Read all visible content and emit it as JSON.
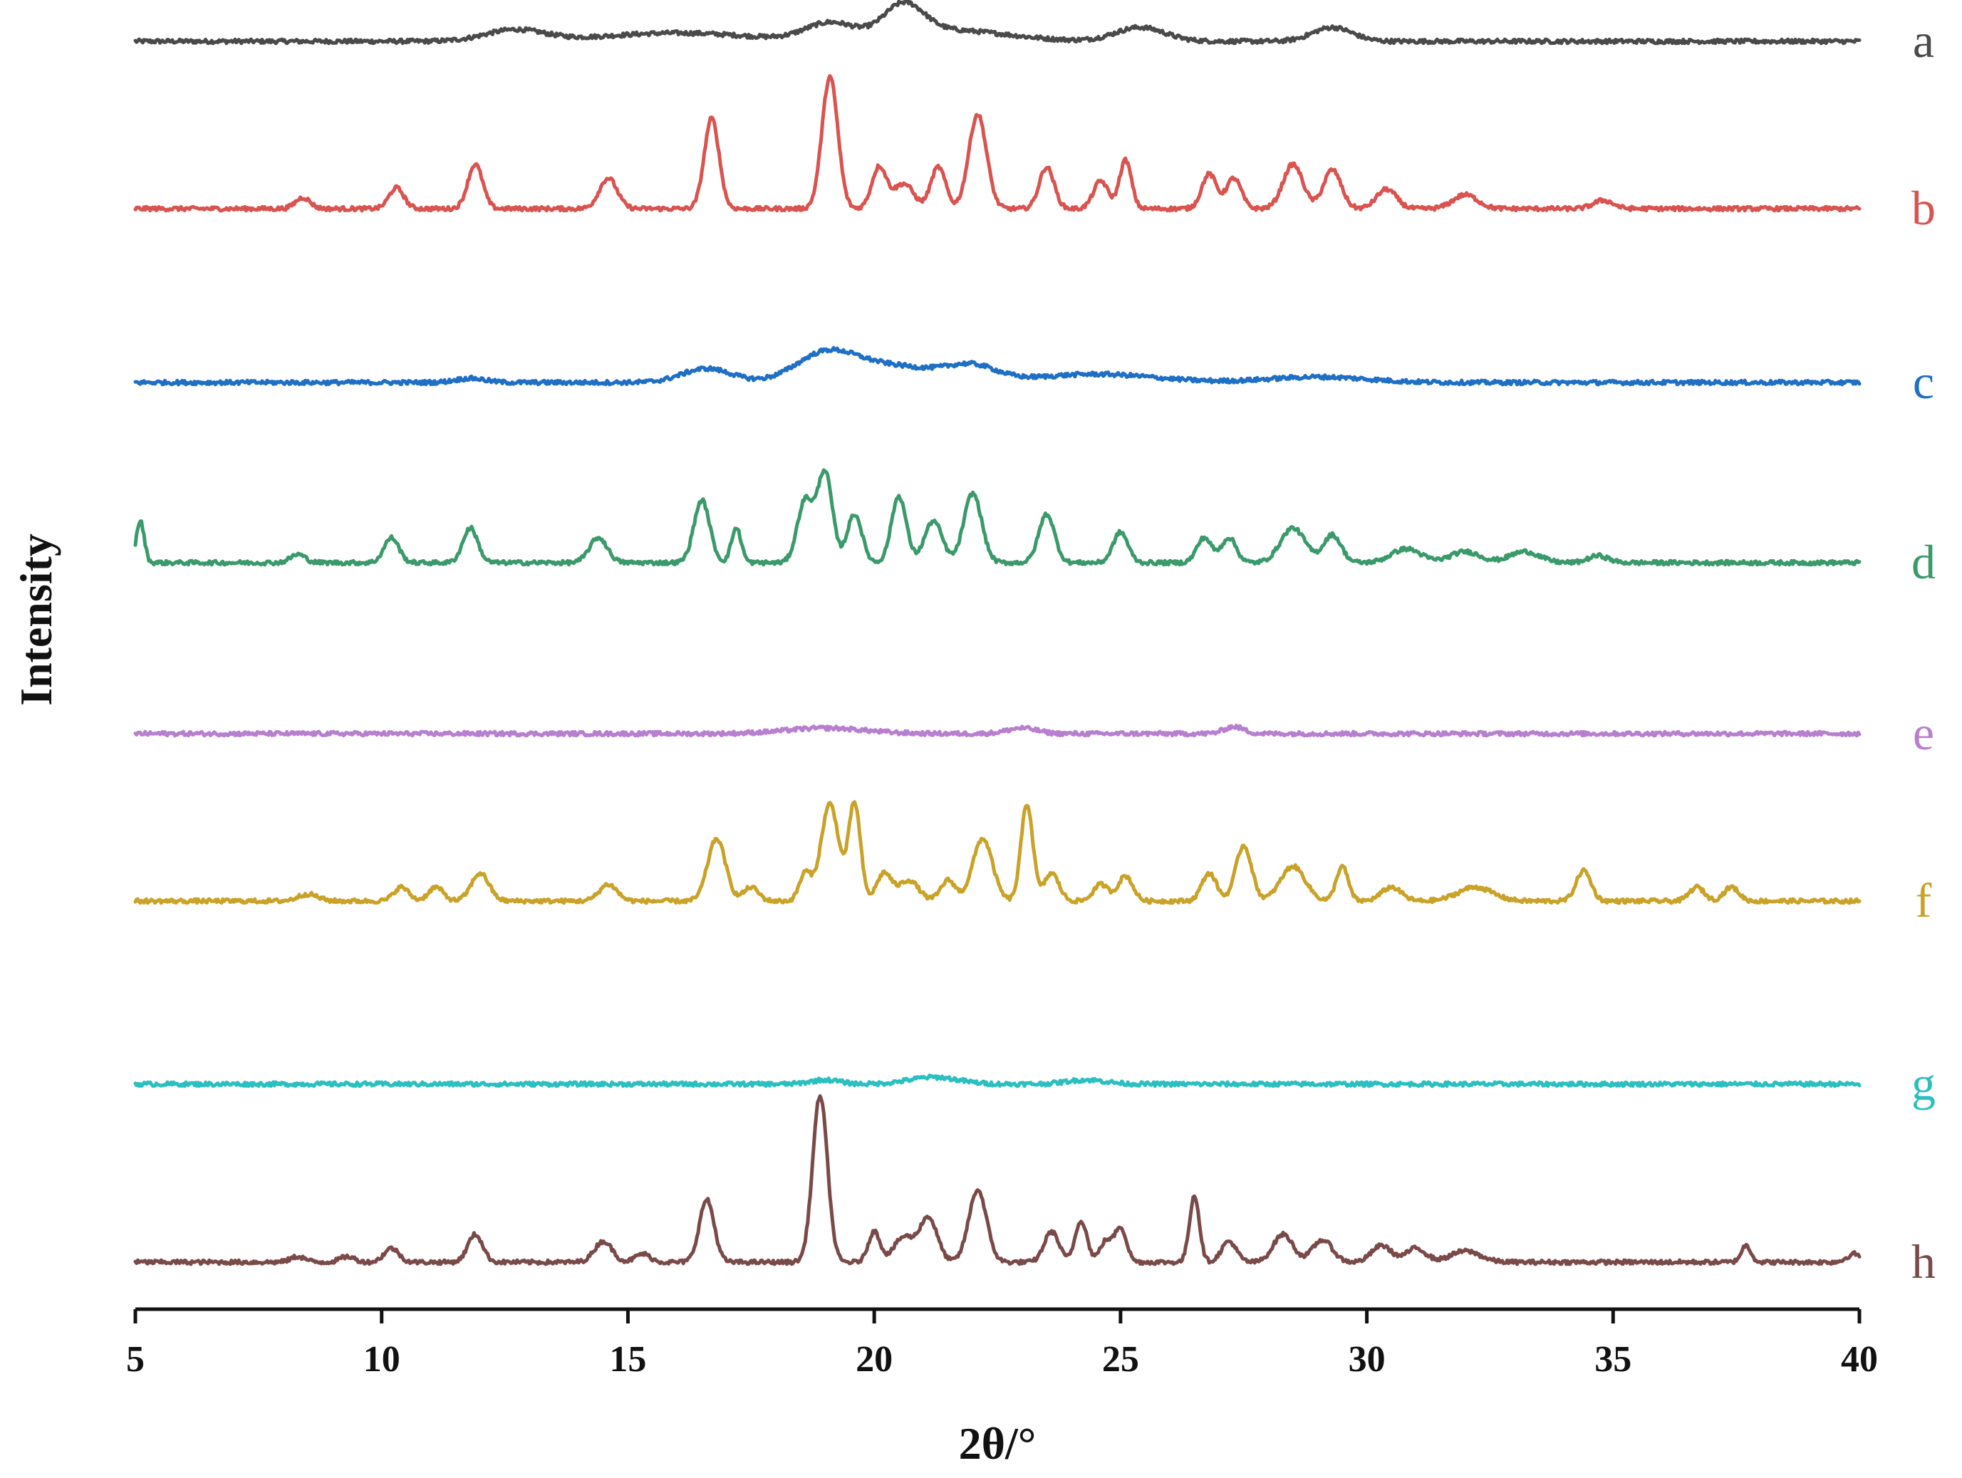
{
  "chart_data": {
    "type": "line",
    "xlabel": "2θ/°",
    "ylabel": "Intensity",
    "xlim": [
      5,
      40
    ],
    "xticks": [
      5,
      10,
      15,
      20,
      25,
      30,
      35,
      40
    ],
    "grid": false,
    "legend": "none",
    "series": [
      {
        "name": "a",
        "color": "#4a4a4a",
        "baseline": 0,
        "peaks": [
          [
            12.7,
            0.08,
            0.6
          ],
          [
            16.0,
            0.06,
            1.5
          ],
          [
            19.1,
            0.12,
            0.5
          ],
          [
            20.6,
            0.22,
            0.4
          ],
          [
            21.5,
            0.08,
            1.2
          ],
          [
            25.4,
            0.1,
            0.5
          ],
          [
            29.3,
            0.1,
            0.4
          ]
        ]
      },
      {
        "name": "b",
        "color": "#d9534f",
        "baseline": 0,
        "peaks": [
          [
            8.4,
            0.08,
            0.15
          ],
          [
            10.3,
            0.15,
            0.15
          ],
          [
            11.9,
            0.32,
            0.15
          ],
          [
            14.6,
            0.22,
            0.18
          ],
          [
            16.7,
            0.65,
            0.15
          ],
          [
            19.1,
            0.95,
            0.16
          ],
          [
            20.1,
            0.3,
            0.15
          ],
          [
            20.6,
            0.18,
            0.2
          ],
          [
            21.3,
            0.3,
            0.15
          ],
          [
            22.1,
            0.68,
            0.18
          ],
          [
            23.5,
            0.3,
            0.15
          ],
          [
            24.6,
            0.2,
            0.15
          ],
          [
            25.1,
            0.35,
            0.12
          ],
          [
            26.8,
            0.25,
            0.15
          ],
          [
            27.3,
            0.22,
            0.15
          ],
          [
            28.5,
            0.32,
            0.2
          ],
          [
            29.3,
            0.28,
            0.18
          ],
          [
            30.4,
            0.14,
            0.2
          ],
          [
            32.0,
            0.1,
            0.25
          ],
          [
            34.8,
            0.06,
            0.2
          ]
        ]
      },
      {
        "name": "c",
        "color": "#1f6fc5",
        "baseline": 0,
        "peaks": [
          [
            11.8,
            0.03,
            0.3
          ],
          [
            16.6,
            0.1,
            0.5
          ],
          [
            19.0,
            0.18,
            0.6
          ],
          [
            20.3,
            0.12,
            1.0
          ],
          [
            22.0,
            0.1,
            0.5
          ],
          [
            24.5,
            0.06,
            1.2
          ],
          [
            29.0,
            0.04,
            1.0
          ]
        ]
      },
      {
        "name": "d",
        "color": "#3a9a6a",
        "baseline": 0,
        "peaks": [
          [
            5.1,
            0.3,
            0.08
          ],
          [
            8.3,
            0.06,
            0.15
          ],
          [
            10.2,
            0.18,
            0.15
          ],
          [
            11.8,
            0.25,
            0.15
          ],
          [
            14.4,
            0.18,
            0.18
          ],
          [
            16.5,
            0.45,
            0.16
          ],
          [
            17.2,
            0.25,
            0.1
          ],
          [
            18.6,
            0.45,
            0.16
          ],
          [
            19.0,
            0.65,
            0.15
          ],
          [
            19.6,
            0.35,
            0.15
          ],
          [
            20.5,
            0.48,
            0.15
          ],
          [
            21.2,
            0.3,
            0.18
          ],
          [
            22.0,
            0.5,
            0.18
          ],
          [
            23.5,
            0.35,
            0.16
          ],
          [
            25.0,
            0.22,
            0.15
          ],
          [
            26.7,
            0.18,
            0.15
          ],
          [
            27.2,
            0.18,
            0.15
          ],
          [
            28.5,
            0.25,
            0.25
          ],
          [
            29.3,
            0.2,
            0.18
          ],
          [
            30.8,
            0.1,
            0.3
          ],
          [
            32.0,
            0.08,
            0.3
          ],
          [
            33.2,
            0.08,
            0.3
          ],
          [
            34.7,
            0.05,
            0.2
          ]
        ]
      },
      {
        "name": "e",
        "color": "#b87fd0",
        "baseline": 0,
        "peaks": [
          [
            19.0,
            0.04,
            0.8
          ],
          [
            23.0,
            0.04,
            0.3
          ],
          [
            27.3,
            0.05,
            0.2
          ]
        ]
      },
      {
        "name": "f",
        "color": "#c9a227",
        "baseline": 0,
        "peaks": [
          [
            8.5,
            0.05,
            0.2
          ],
          [
            10.4,
            0.1,
            0.15
          ],
          [
            11.1,
            0.1,
            0.15
          ],
          [
            12.0,
            0.2,
            0.18
          ],
          [
            14.6,
            0.12,
            0.18
          ],
          [
            16.8,
            0.45,
            0.18
          ],
          [
            17.5,
            0.1,
            0.15
          ],
          [
            18.6,
            0.2,
            0.12
          ],
          [
            19.1,
            0.7,
            0.18
          ],
          [
            19.6,
            0.7,
            0.12
          ],
          [
            20.2,
            0.2,
            0.15
          ],
          [
            20.7,
            0.15,
            0.2
          ],
          [
            21.5,
            0.15,
            0.15
          ],
          [
            22.2,
            0.45,
            0.2
          ],
          [
            23.1,
            0.7,
            0.12
          ],
          [
            23.6,
            0.2,
            0.15
          ],
          [
            24.6,
            0.12,
            0.15
          ],
          [
            25.1,
            0.18,
            0.15
          ],
          [
            26.8,
            0.2,
            0.15
          ],
          [
            27.5,
            0.4,
            0.16
          ],
          [
            28.5,
            0.25,
            0.25
          ],
          [
            29.5,
            0.25,
            0.12
          ],
          [
            30.5,
            0.1,
            0.2
          ],
          [
            32.2,
            0.1,
            0.35
          ],
          [
            34.4,
            0.22,
            0.15
          ],
          [
            36.7,
            0.1,
            0.15
          ],
          [
            37.4,
            0.1,
            0.15
          ]
        ]
      },
      {
        "name": "g",
        "color": "#2bbfc0",
        "baseline": 0,
        "peaks": [
          [
            19.0,
            0.03,
            0.3
          ],
          [
            21.2,
            0.05,
            0.5
          ],
          [
            24.3,
            0.03,
            0.4
          ]
        ]
      },
      {
        "name": "h",
        "color": "#7a4a48",
        "baseline": 0,
        "peaks": [
          [
            8.3,
            0.04,
            0.15
          ],
          [
            9.3,
            0.04,
            0.15
          ],
          [
            10.2,
            0.1,
            0.15
          ],
          [
            11.9,
            0.2,
            0.15
          ],
          [
            14.5,
            0.15,
            0.18
          ],
          [
            15.3,
            0.06,
            0.15
          ],
          [
            16.6,
            0.45,
            0.15
          ],
          [
            18.9,
            1.2,
            0.15
          ],
          [
            20.0,
            0.22,
            0.12
          ],
          [
            20.6,
            0.18,
            0.2
          ],
          [
            21.1,
            0.32,
            0.18
          ],
          [
            22.1,
            0.52,
            0.18
          ],
          [
            23.6,
            0.22,
            0.15
          ],
          [
            24.2,
            0.3,
            0.12
          ],
          [
            24.7,
            0.15,
            0.12
          ],
          [
            25.0,
            0.25,
            0.12
          ],
          [
            26.5,
            0.48,
            0.1
          ],
          [
            27.2,
            0.15,
            0.15
          ],
          [
            28.3,
            0.2,
            0.2
          ],
          [
            29.1,
            0.16,
            0.2
          ],
          [
            30.3,
            0.12,
            0.2
          ],
          [
            31.0,
            0.1,
            0.2
          ],
          [
            32.0,
            0.08,
            0.3
          ],
          [
            37.7,
            0.12,
            0.1
          ],
          [
            39.9,
            0.06,
            0.15
          ]
        ]
      }
    ]
  }
}
